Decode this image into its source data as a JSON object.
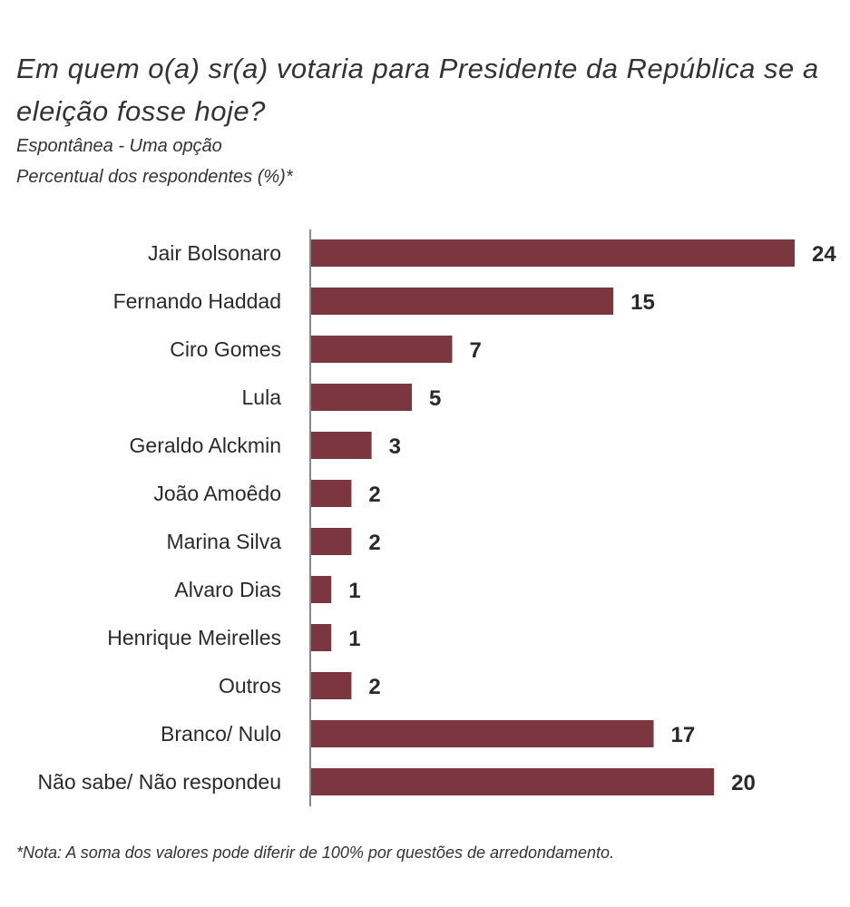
{
  "title": "Em quem o(a) sr(a) votaria para Presidente da República se a eleição fosse hoje?",
  "subtitle1": "Espontânea - Uma opção",
  "subtitle2": "Percentual dos respondentes (%)*",
  "note": "*Nota: A soma dos valores pode diferir de 100% por questões de arredondamento.",
  "chart_data": {
    "type": "bar",
    "orientation": "horizontal",
    "title": "Em quem o(a) sr(a) votaria para Presidente da República se a eleição fosse hoje?",
    "categories": [
      "Jair Bolsonaro",
      "Fernando Haddad",
      "Ciro Gomes",
      "Lula",
      "Geraldo Alckmin",
      "João Amoêdo",
      "Marina Silva",
      "Alvaro Dias",
      "Henrique Meirelles",
      "Outros",
      "Branco/ Nulo",
      "Não sabe/ Não respondeu"
    ],
    "values": [
      24,
      15,
      7,
      5,
      3,
      2,
      2,
      1,
      1,
      2,
      17,
      20
    ],
    "xlabel": "",
    "ylabel": "",
    "xlim": [
      0,
      24
    ],
    "grid": false,
    "bar_color": "#7b3640"
  }
}
